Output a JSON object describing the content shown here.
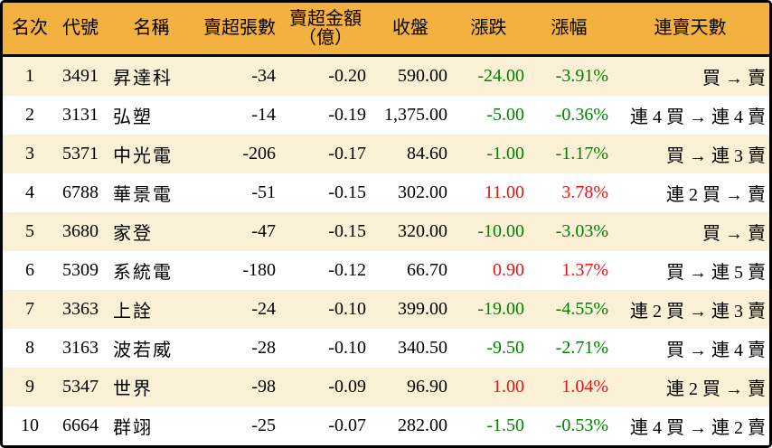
{
  "chart_data": {
    "type": "table",
    "columns": [
      {
        "id": "rank",
        "label": "名次"
      },
      {
        "id": "code",
        "label": "代號"
      },
      {
        "id": "name",
        "label": "名稱"
      },
      {
        "id": "volume",
        "label": "賣超張數"
      },
      {
        "id": "amount",
        "label": "賣超金額",
        "label2": "（億）"
      },
      {
        "id": "close",
        "label": "收盤"
      },
      {
        "id": "change",
        "label": "漲跌"
      },
      {
        "id": "pct",
        "label": "漲幅"
      },
      {
        "id": "streak",
        "label": "連賣天數"
      }
    ],
    "rows": [
      {
        "rank": "1",
        "code": "3491",
        "name": "昇達科",
        "volume": "-34",
        "amount": "-0.20",
        "close": "590.00",
        "change": "-24.00",
        "pct": "-3.91%",
        "streak": "買 → 賣",
        "trend": "down"
      },
      {
        "rank": "2",
        "code": "3131",
        "name": "弘塑",
        "volume": "-14",
        "amount": "-0.19",
        "close": "1,375.00",
        "change": "-5.00",
        "pct": "-0.36%",
        "streak": "連 4 買 → 連 4 賣",
        "trend": "down"
      },
      {
        "rank": "3",
        "code": "5371",
        "name": "中光電",
        "volume": "-206",
        "amount": "-0.17",
        "close": "84.60",
        "change": "-1.00",
        "pct": "-1.17%",
        "streak": "買 → 連 3 賣",
        "trend": "down"
      },
      {
        "rank": "4",
        "code": "6788",
        "name": "華景電",
        "volume": "-51",
        "amount": "-0.15",
        "close": "302.00",
        "change": "11.00",
        "pct": "3.78%",
        "streak": "連 2 買 → 賣",
        "trend": "up"
      },
      {
        "rank": "5",
        "code": "3680",
        "name": "家登",
        "volume": "-47",
        "amount": "-0.15",
        "close": "320.00",
        "change": "-10.00",
        "pct": "-3.03%",
        "streak": "買 → 賣",
        "trend": "down"
      },
      {
        "rank": "6",
        "code": "5309",
        "name": "系統電",
        "volume": "-180",
        "amount": "-0.12",
        "close": "66.70",
        "change": "0.90",
        "pct": "1.37%",
        "streak": "買 → 連 5 賣",
        "trend": "up"
      },
      {
        "rank": "7",
        "code": "3363",
        "name": "上詮",
        "volume": "-24",
        "amount": "-0.10",
        "close": "399.00",
        "change": "-19.00",
        "pct": "-4.55%",
        "streak": "連 2 買 → 連 3 賣",
        "trend": "down"
      },
      {
        "rank": "8",
        "code": "3163",
        "name": "波若威",
        "volume": "-28",
        "amount": "-0.10",
        "close": "340.50",
        "change": "-9.50",
        "pct": "-2.71%",
        "streak": "買 → 連 4 賣",
        "trend": "down"
      },
      {
        "rank": "9",
        "code": "5347",
        "name": "世界",
        "volume": "-98",
        "amount": "-0.09",
        "close": "96.90",
        "change": "1.00",
        "pct": "1.04%",
        "streak": "連 2 買 → 賣",
        "trend": "up"
      },
      {
        "rank": "10",
        "code": "6664",
        "name": "群翊",
        "volume": "-25",
        "amount": "-0.07",
        "close": "282.00",
        "change": "-1.50",
        "pct": "-0.53%",
        "streak": "連 4 買 → 連 2 賣",
        "trend": "down"
      }
    ]
  },
  "colors": {
    "header_bg": "#F3B13F",
    "row_alt_bg": "#FAF0D6",
    "row_bg": "#FFFFFF",
    "border": "#000000",
    "text": "#000000",
    "up_red": "#EE1111",
    "down_green": "#008000"
  }
}
